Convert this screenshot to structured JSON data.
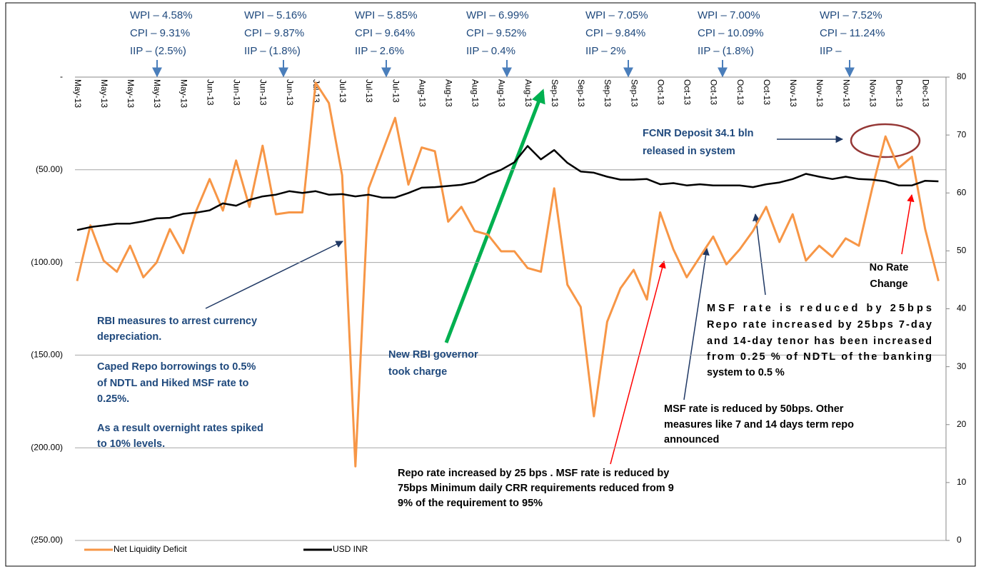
{
  "chart_data": {
    "type": "line",
    "categories": [
      "May-13",
      null,
      "May-13",
      null,
      "May-13",
      null,
      "May-13",
      null,
      "May-13",
      null,
      "Jun-13",
      null,
      "Jun-13",
      null,
      "Jun-13",
      null,
      "Jun-13",
      null,
      "Jul-13",
      null,
      "Jul-13",
      null,
      "Jul-13",
      null,
      "Jul-13",
      null,
      "Aug-13",
      null,
      "Aug-13",
      null,
      "Aug-13",
      null,
      "Aug-13",
      null,
      "Aug-13",
      null,
      "Sep-13",
      null,
      "Sep-13",
      null,
      "Sep-13",
      null,
      "Sep-13",
      null,
      "Oct-13",
      null,
      "Oct-13",
      null,
      "Oct-13",
      null,
      "Oct-13",
      null,
      "Oct-13",
      null,
      "Nov-13",
      null,
      "Nov-13",
      null,
      "Nov-13",
      null,
      "Nov-13",
      null,
      "Dec-13",
      null,
      "Dec-13",
      null
    ],
    "series": [
      {
        "name": "Net Liquidity Deficit",
        "color": "#f79646",
        "values": [
          -110,
          -80,
          -99,
          -105,
          -91,
          -108,
          -100,
          -82,
          -95,
          -72,
          -55,
          -72,
          -45,
          -70,
          -37,
          -74,
          -73,
          -73,
          -3,
          -14,
          -53,
          -210,
          -60,
          -41,
          -22,
          -58,
          -38,
          -40,
          -78,
          -70,
          -83,
          -85,
          -94,
          -94,
          -103,
          -105,
          -60,
          -112,
          -124,
          -183,
          -132,
          -114,
          -104,
          -120,
          -73,
          -93,
          -108,
          -97,
          -86,
          -101,
          -93,
          -83,
          -70,
          -89,
          -74,
          -99,
          -91,
          -97,
          -87,
          -91,
          -60,
          -32,
          -49,
          -43,
          -82,
          -110
        ]
      },
      {
        "name": "USD INR",
        "color": "#000000",
        "axis": "y2",
        "values": [
          53.6,
          54.1,
          54.4,
          54.7,
          54.7,
          55.1,
          55.6,
          55.7,
          56.4,
          56.6,
          57.0,
          58.2,
          57.8,
          58.8,
          59.4,
          59.7,
          60.3,
          60.0,
          60.3,
          59.7,
          59.8,
          59.4,
          59.7,
          59.2,
          59.2,
          60.0,
          60.9,
          61.0,
          61.2,
          61.4,
          61.9,
          63.1,
          64.0,
          65.3,
          68.1,
          65.8,
          67.4,
          65.2,
          63.7,
          63.5,
          62.8,
          62.3,
          62.3,
          62.4,
          61.5,
          61.7,
          61.3,
          61.5,
          61.3,
          61.3,
          61.3,
          61.0,
          61.5,
          61.8,
          62.4,
          63.3,
          62.8,
          62.4,
          62.8,
          62.4,
          62.3,
          62.0,
          61.3,
          61.3,
          62.1,
          62.0
        ]
      }
    ],
    "ylim": [
      -250,
      0
    ],
    "yticks": [
      {
        "value": 0,
        "label": "-"
      },
      {
        "value": -50,
        "label": "(50.00)"
      },
      {
        "value": -100,
        "label": "(100.00)"
      },
      {
        "value": -150,
        "label": "(150.00)"
      },
      {
        "value": -200,
        "label": "(200.00)"
      },
      {
        "value": -250,
        "label": "(250.00)"
      }
    ],
    "y2lim": [
      0,
      80
    ],
    "y2ticks": [
      0,
      10,
      20,
      30,
      40,
      50,
      60,
      70,
      80
    ],
    "grid": true,
    "legend": "bottom",
    "inflation_notes": [
      {
        "wpi": "WPI – 4.58%",
        "cpi": "CPI – 9.31%",
        "iip": "IIP – (2.5%)",
        "iip_color": "#ff0000"
      },
      {
        "wpi": "WPI – 5.16%",
        "cpi": "CPI – 9.87%",
        "iip": "IIP – (1.8%)",
        "iip_color": "#ff0000"
      },
      {
        "wpi": "WPI – 5.85%",
        "cpi": "CPI – 9.64%",
        "iip": "IIP – 2.6%",
        "iip_color": "#1f497d"
      },
      {
        "wpi": "WPI – 6.99%",
        "cpi": "CPI – 9.52%",
        "iip": "IIP – 0.4%",
        "iip_color": "#1f497d"
      },
      {
        "wpi": "WPI – 7.05%",
        "cpi": "CPI – 9.84%",
        "iip": "IIP – 2%",
        "iip_color": "#1f497d"
      },
      {
        "wpi": "WPI – 7.00%",
        "cpi": "CPI – 10.09%",
        "iip": "IIP – (1.8%)",
        "iip_color": "#ff0000"
      },
      {
        "wpi": "WPI – 7.52%",
        "cpi": "CPI – 11.24%",
        "iip": "IIP –",
        "iip_color": "#1f497d"
      }
    ],
    "annotations": [
      {
        "lines": [
          "RBI measures to arrest  currency",
          "depreciation.",
          "Caped Repo borrowings to 0.5%",
          "of NDTL and Hiked MSF rate to",
          "0.25%.",
          "As a result overnight rates spiked",
          "to 10% levels."
        ],
        "color": "#1f497d"
      },
      {
        "lines": [
          "New RBI governor",
          "took charge"
        ],
        "color": "#1f497d"
      },
      {
        "lines": [
          "FCNR Deposit  34.1 bln",
          "released in system"
        ],
        "color": "#1f497d"
      },
      {
        "lines": [
          "No Rate",
          "Change"
        ],
        "color": "#000000"
      },
      {
        "lines": [
          "MSF  rate  is  reduced  by  25bps",
          "Repo rate increased by 25bps 7-day",
          "and 14-day tenor has been increased",
          "from  0.25 % of NDTL of the banking",
          "system to 0.5 %"
        ],
        "color": "#000000"
      },
      {
        "lines": [
          "MSF rate is reduced by 50bps. Other",
          "measures like 7 and 14 days term repo",
          "announced"
        ],
        "color": "#000000"
      },
      {
        "lines": [
          "Repo rate increased by 25 bps . MSF rate is  reduced by",
          "75bps Minimum daily CRR requirements reduced from 9",
          "9% of the requirement to 95%"
        ],
        "color": "#000000"
      }
    ]
  }
}
